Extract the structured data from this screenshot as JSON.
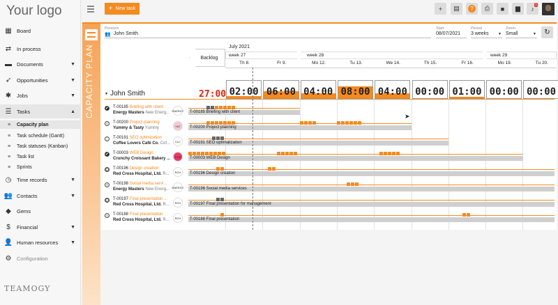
{
  "app": {
    "logo": "Your logo",
    "brand": "TEAMOGY"
  },
  "colors": {
    "accent": "#f58a1f",
    "dark": "#555555"
  },
  "nav": [
    {
      "label": "Board",
      "icon": "grid-icon"
    },
    {
      "label": "In process",
      "icon": "flow-icon"
    },
    {
      "label": "Documents",
      "icon": "folder-icon"
    },
    {
      "label": "Opportunities",
      "icon": "rocket-icon"
    },
    {
      "label": "Jobs",
      "icon": "gear-icon"
    },
    {
      "label": "Tasks",
      "icon": "tasks-icon"
    },
    {
      "label": "Time records",
      "icon": "clock-icon"
    },
    {
      "label": "Contacts",
      "icon": "contacts-icon"
    },
    {
      "label": "Gems",
      "icon": "gem-icon"
    },
    {
      "label": "Financial",
      "icon": "dollar-icon"
    },
    {
      "label": "Human resources",
      "icon": "people-icon"
    },
    {
      "label": "Configuration",
      "icon": "cog-icon"
    }
  ],
  "tasks_sub": [
    "Capacity plan",
    "Task schedule (Gantt)",
    "Task statuses (Kanban)",
    "Task list",
    "Sprints"
  ],
  "topbar": {
    "new_task": "New task",
    "notif_count": "1"
  },
  "filters": {
    "persons_label": "Persons",
    "person": "John Smith",
    "start_label": "Start",
    "start": "08/07/2021",
    "period_label": "Period",
    "period": "3 weeks",
    "zoom_label": "Zoom",
    "zoom": "Small"
  },
  "side_title": "CAPACITY PLAN",
  "timeline": {
    "month": "July 2021",
    "backlog": "Backlog",
    "weeks": [
      "week 27",
      "week 28",
      "week 29"
    ],
    "days": [
      "Th 8.",
      "Fr 9.",
      "Mo 12.",
      "Tu 13.",
      "We 14.",
      "Th 15.",
      "Fr 16.",
      "Mo 19.",
      "Tu 20."
    ]
  },
  "person_row": {
    "name": "John Smith",
    "total": "27:00",
    "hours": [
      "02:00",
      "06:00",
      "04:00",
      "08:00",
      "04:00",
      "00:00",
      "01:00",
      "00:00",
      "00:00"
    ],
    "fill": [
      0.2,
      0.6,
      0.4,
      1.0,
      0.4,
      0,
      0.1,
      0,
      0
    ]
  },
  "tasks": [
    {
      "id": "T-00185",
      "name": "Briefing with client",
      "customer": "Energy Masters",
      "customer2": "New Energ...",
      "bar": "T-00185 Briefing with client",
      "status": "done",
      "logo": "ENERGY"
    },
    {
      "id": "T-00200",
      "name": "Project planning",
      "customer": "Yummy & Tasty",
      "customer2": "Yummy",
      "bar": "T-00200 Project planning",
      "status": "open",
      "logo": "Y&T"
    },
    {
      "id": "T-00191",
      "name": "SEO optimization",
      "customer": "Coffee Lovers Café Co.",
      "customer2": "Cof...",
      "bar": "T-00191 SEO optimalization",
      "status": "progress",
      "logo": "CLC"
    },
    {
      "id": "T-00003",
      "name": "WEB Design",
      "customer": "Crunchy Croissant Bakery ...",
      "customer2": "",
      "bar": "T-00003 WEB Design",
      "status": "done",
      "logo": "CCB"
    },
    {
      "id": "T-00196",
      "name": "Design creation",
      "customer": "Red Cross Hospital, Ltd.",
      "customer2": "R...",
      "bar": "T-00196 Design creation",
      "status": "paused",
      "logo": "RCH"
    },
    {
      "id": "T-00198",
      "name": "Social media servi...",
      "customer": "Energy Masters",
      "customer2": "New Energ...",
      "bar": "T-00198 Social media services",
      "status": "open",
      "logo": "ENERGY"
    },
    {
      "id": "T-00197",
      "name": "Final presentation ...",
      "customer": "Red Cross Hospital, Ltd.",
      "customer2": "R...",
      "bar": "T-00197 Final presentation for management",
      "status": "paused",
      "logo": "RCH"
    },
    {
      "id": "T-00188",
      "name": "Final presentation",
      "customer": "Red Cross Hospital, Ltd.",
      "customer2": "R...",
      "bar": "T-00188 Final presentation",
      "status": "open",
      "logo": "RCH"
    }
  ]
}
